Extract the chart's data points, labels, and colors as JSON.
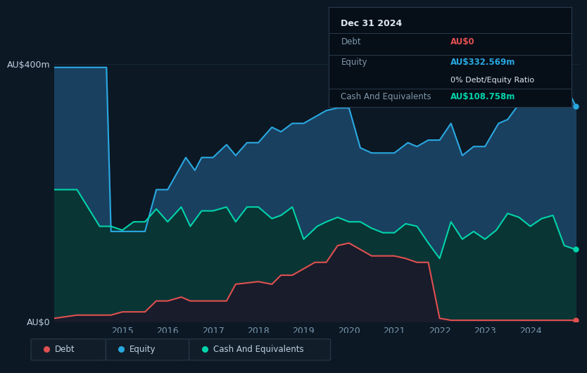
{
  "bg_color": "#0c1824",
  "plot_bg_color": "#0c1824",
  "grid_color": "#1a3040",
  "equity_color": "#29a8e0",
  "equity_fill_top": "#1a4060",
  "equity_fill_bot": "#0c2030",
  "cash_color": "#00d4aa",
  "cash_fill": "#0a3535",
  "debt_color": "#e05050",
  "debt_fill": "#2a1010",
  "legend_bg": "#111e2a",
  "legend_border": "#2a3a4a",
  "tooltip_bg": "#060e18",
  "tooltip_border": "#2a3a4a",
  "equity_data_x": [
    2013.5,
    2014.0,
    2014.65,
    2014.75,
    2015.0,
    2015.5,
    2015.75,
    2016.0,
    2016.4,
    2016.6,
    2016.75,
    2017.0,
    2017.3,
    2017.5,
    2017.75,
    2018.0,
    2018.3,
    2018.5,
    2018.75,
    2019.0,
    2019.3,
    2019.5,
    2019.75,
    2020.0,
    2020.25,
    2020.5,
    2020.75,
    2021.0,
    2021.3,
    2021.5,
    2021.75,
    2022.0,
    2022.25,
    2022.5,
    2022.75,
    2023.0,
    2023.3,
    2023.5,
    2023.75,
    2024.0,
    2024.25,
    2024.5,
    2024.75,
    2025.0
  ],
  "equity_data_y": [
    395,
    395,
    395,
    140,
    140,
    140,
    205,
    205,
    255,
    235,
    255,
    255,
    275,
    258,
    278,
    278,
    302,
    295,
    308,
    308,
    320,
    328,
    332,
    332,
    270,
    262,
    262,
    262,
    278,
    272,
    282,
    282,
    308,
    258,
    272,
    272,
    308,
    314,
    338,
    338,
    355,
    355,
    372,
    335
  ],
  "cash_data_x": [
    2013.5,
    2014.0,
    2014.5,
    2014.75,
    2015.0,
    2015.25,
    2015.5,
    2015.75,
    2016.0,
    2016.3,
    2016.5,
    2016.75,
    2017.0,
    2017.3,
    2017.5,
    2017.75,
    2018.0,
    2018.3,
    2018.5,
    2018.75,
    2019.0,
    2019.3,
    2019.5,
    2019.75,
    2020.0,
    2020.25,
    2020.5,
    2020.75,
    2021.0,
    2021.25,
    2021.5,
    2021.75,
    2022.0,
    2022.25,
    2022.5,
    2022.75,
    2023.0,
    2023.25,
    2023.5,
    2023.75,
    2024.0,
    2024.25,
    2024.5,
    2024.75,
    2025.0
  ],
  "cash_data_y": [
    205,
    205,
    148,
    148,
    142,
    155,
    155,
    175,
    155,
    178,
    148,
    172,
    172,
    178,
    155,
    178,
    178,
    160,
    165,
    178,
    128,
    148,
    155,
    162,
    155,
    155,
    145,
    138,
    138,
    152,
    148,
    122,
    98,
    155,
    128,
    140,
    128,
    142,
    168,
    162,
    148,
    160,
    165,
    118,
    112
  ],
  "debt_data_x": [
    2013.5,
    2014.0,
    2014.5,
    2014.75,
    2015.0,
    2015.5,
    2015.75,
    2016.0,
    2016.3,
    2016.5,
    2016.75,
    2017.0,
    2017.3,
    2017.5,
    2018.0,
    2018.3,
    2018.5,
    2018.75,
    2019.0,
    2019.25,
    2019.5,
    2019.75,
    2020.0,
    2020.25,
    2020.5,
    2020.75,
    2021.0,
    2021.25,
    2021.5,
    2021.75,
    2022.0,
    2022.25,
    2022.5,
    2022.75,
    2023.0,
    2023.25,
    2023.5,
    2023.75,
    2024.0,
    2024.25,
    2024.5,
    2024.75,
    2025.0
  ],
  "debt_data_y": [
    5,
    10,
    10,
    10,
    15,
    15,
    32,
    32,
    38,
    32,
    32,
    32,
    32,
    58,
    62,
    58,
    72,
    72,
    82,
    92,
    92,
    118,
    122,
    112,
    102,
    102,
    102,
    98,
    92,
    92,
    5,
    2,
    2,
    2,
    2,
    2,
    2,
    2,
    2,
    2,
    2,
    2,
    2
  ],
  "ylim": [
    0,
    420
  ],
  "xlim": [
    2013.5,
    2025.1
  ],
  "ylabel_top": "AU$400m",
  "ylabel_bot": "AU$0",
  "xtick_labels": [
    "2015",
    "2016",
    "2017",
    "2018",
    "2019",
    "2020",
    "2021",
    "2022",
    "2023",
    "2024"
  ],
  "xtick_positions": [
    2015,
    2016,
    2017,
    2018,
    2019,
    2020,
    2021,
    2022,
    2023,
    2024
  ],
  "tooltip": {
    "date": "Dec 31 2024",
    "rows": [
      {
        "label": "Debt",
        "value": "AU$0",
        "value_color": "#e05050"
      },
      {
        "label": "Equity",
        "value": "AU$332.569m",
        "value_color": "#29a8e0",
        "sub": "0% Debt/Equity Ratio"
      },
      {
        "label": "Cash And Equivalents",
        "value": "AU$108.758m",
        "value_color": "#00d4aa"
      }
    ]
  },
  "legend_items": [
    {
      "label": "Debt",
      "color": "#e05050"
    },
    {
      "label": "Equity",
      "color": "#29a8e0"
    },
    {
      "label": "Cash And Equivalents",
      "color": "#00d4aa"
    }
  ]
}
